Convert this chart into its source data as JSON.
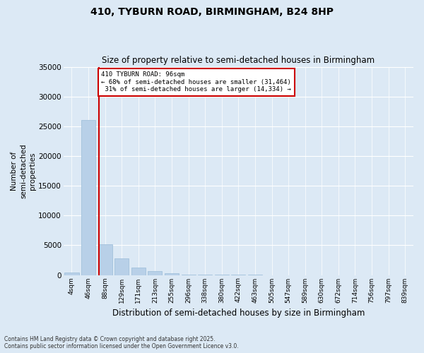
{
  "title": "410, TYBURN ROAD, BIRMINGHAM, B24 8HP",
  "subtitle": "Size of property relative to semi-detached houses in Birmingham",
  "xlabel": "Distribution of semi-detached houses by size in Birmingham",
  "ylabel": "Number of\nsemi-detached\nproperties",
  "categories": [
    "4sqm",
    "46sqm",
    "88sqm",
    "129sqm",
    "171sqm",
    "213sqm",
    "255sqm",
    "296sqm",
    "338sqm",
    "380sqm",
    "422sqm",
    "463sqm",
    "505sqm",
    "547sqm",
    "589sqm",
    "630sqm",
    "672sqm",
    "714sqm",
    "756sqm",
    "797sqm",
    "839sqm"
  ],
  "values": [
    400,
    26000,
    5200,
    2800,
    1200,
    700,
    350,
    120,
    40,
    10,
    4,
    2,
    1,
    0,
    0,
    0,
    0,
    0,
    0,
    0,
    0
  ],
  "bar_color": "#b8d0e8",
  "bar_edge_color": "#9abcd8",
  "bg_color": "#dce9f5",
  "grid_color": "#ffffff",
  "annotation_box_color": "#ffffff",
  "annotation_box_edge": "#cc0000",
  "vline_color": "#cc0000",
  "property_label": "410 TYBURN ROAD: 96sqm",
  "smaller_pct": "68%",
  "smaller_count": "31,464",
  "larger_pct": "31%",
  "larger_count": "14,334",
  "property_bin_index": 2,
  "ylim": [
    0,
    35000
  ],
  "yticks": [
    0,
    5000,
    10000,
    15000,
    20000,
    25000,
    30000,
    35000
  ],
  "footer1": "Contains HM Land Registry data © Crown copyright and database right 2025.",
  "footer2": "Contains public sector information licensed under the Open Government Licence v3.0."
}
